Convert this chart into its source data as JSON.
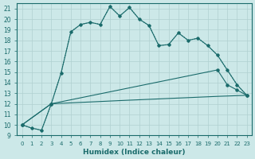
{
  "xlabel": "Humidex (Indice chaleur)",
  "bg_color": "#cce8e8",
  "line_color": "#1a6b6b",
  "grid_color": "#b0d0d0",
  "ylim": [
    9,
    21.5
  ],
  "xlim": [
    -0.5,
    23.5
  ],
  "yticks": [
    9,
    10,
    11,
    12,
    13,
    14,
    15,
    16,
    17,
    18,
    19,
    20,
    21
  ],
  "xticks": [
    0,
    1,
    2,
    3,
    4,
    5,
    6,
    7,
    8,
    9,
    10,
    11,
    12,
    13,
    14,
    15,
    16,
    17,
    18,
    19,
    20,
    21,
    22,
    23
  ],
  "dotted_x": [
    0,
    1,
    2,
    3,
    4,
    5,
    6,
    7,
    8,
    9,
    10,
    11,
    12,
    13,
    14,
    15,
    16,
    17,
    18,
    19,
    20,
    21,
    22,
    23
  ],
  "dotted_y": [
    10.0,
    9.7,
    9.5,
    12.0,
    14.9,
    18.8,
    19.5,
    19.7,
    19.5,
    21.2,
    20.3,
    21.1,
    20.0,
    19.4,
    17.5,
    17.6,
    18.7,
    18.0,
    18.2,
    17.5,
    16.6,
    15.2,
    13.8,
    12.8
  ],
  "solid_x": [
    0,
    1,
    2,
    3,
    4,
    5,
    6,
    7,
    8,
    9,
    10,
    11,
    12,
    13,
    14,
    15,
    16,
    17,
    18,
    19,
    20,
    21,
    22,
    23
  ],
  "solid_y": [
    10.0,
    9.7,
    9.5,
    12.0,
    14.9,
    18.8,
    19.5,
    19.7,
    19.5,
    21.2,
    20.3,
    21.1,
    20.0,
    19.4,
    17.5,
    17.6,
    18.7,
    18.0,
    18.2,
    17.5,
    16.6,
    15.2,
    13.8,
    12.8
  ],
  "upper_line_x": [
    0,
    3,
    20,
    21,
    22,
    23
  ],
  "upper_line_y": [
    10.0,
    12.0,
    15.2,
    13.8,
    13.3,
    12.8
  ],
  "lower_line_x": [
    0,
    3,
    10,
    15,
    20,
    23
  ],
  "lower_line_y": [
    10.0,
    12.0,
    12.3,
    12.5,
    12.7,
    12.8
  ]
}
